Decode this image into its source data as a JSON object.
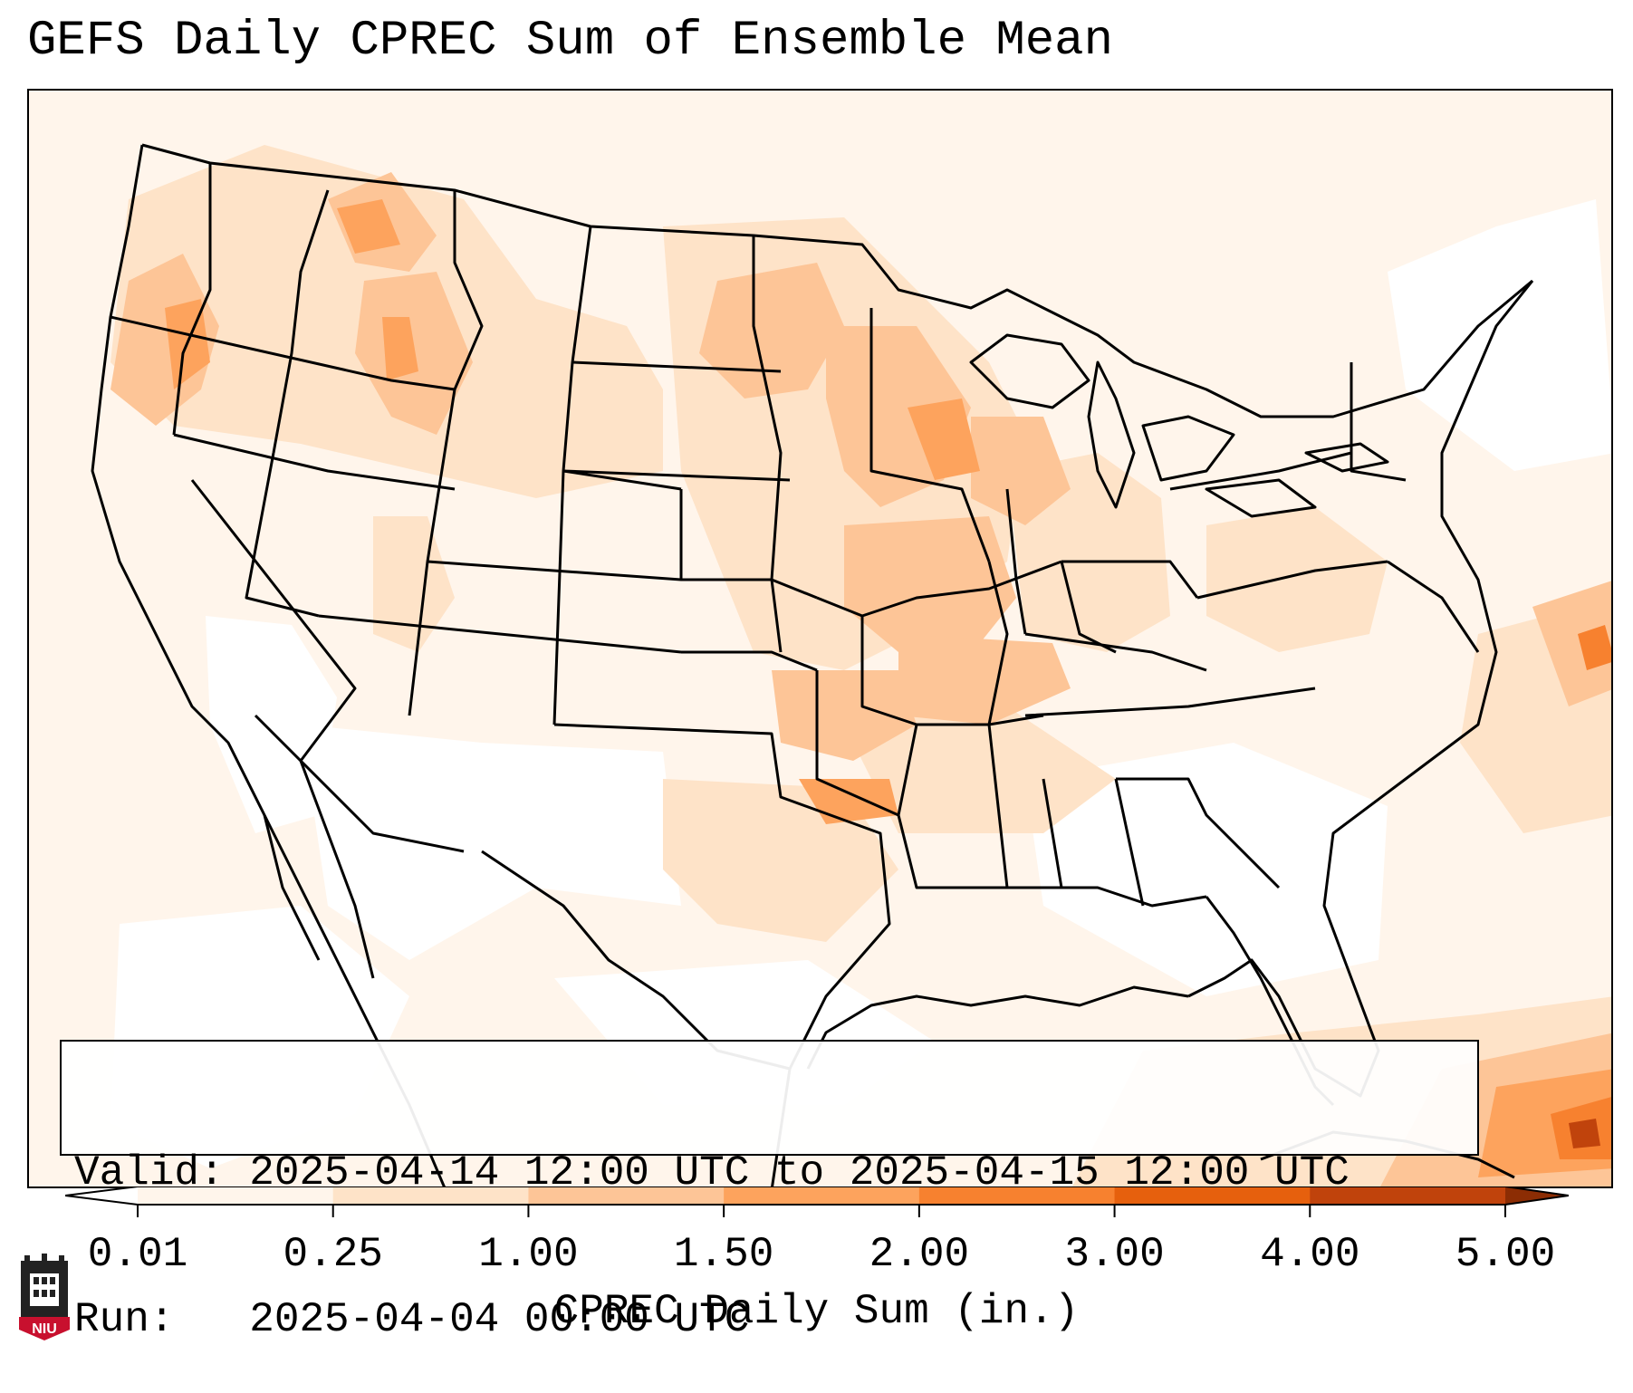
{
  "title": "GEFS Daily CPREC Sum of Ensemble Mean",
  "info": {
    "valid_line": "Valid: 2025-04-14 12:00 UTC to 2025-04-15 12:00 UTC",
    "run_line": "Run:   2025-04-04 00:00 UTC"
  },
  "colorbar": {
    "label": "CPREC Daily Sum (in.)",
    "ticks": [
      "0.01",
      "0.25",
      "1.00",
      "1.50",
      "2.00",
      "3.00",
      "4.00",
      "5.00"
    ],
    "colors": [
      "#fff5eb",
      "#fee3c8",
      "#fdc597",
      "#fda35d",
      "#f7812f",
      "#e6600d",
      "#c0430c"
    ],
    "under_color": "#ffffff",
    "over_color": "#8c2d04"
  },
  "logo": {
    "text": "NIU",
    "color": "#c8102e"
  },
  "map_colors": {
    "land_base": "#fff5eb",
    "light": "#fee3c8",
    "medium": "#fdc597",
    "strong": "#fda35d",
    "heavy": "#f7812f",
    "extreme": "#c0430c"
  }
}
